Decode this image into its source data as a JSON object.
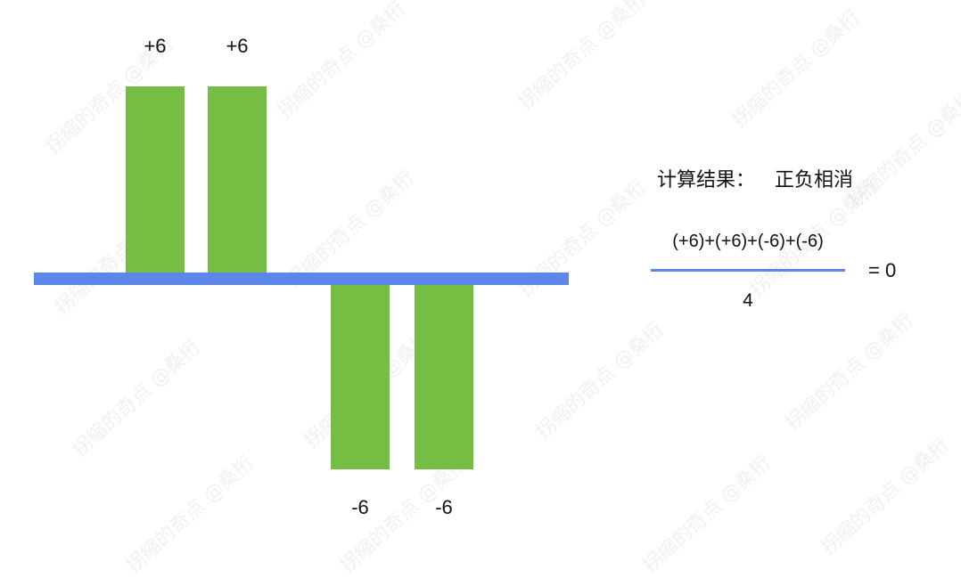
{
  "colors": {
    "bar": "#76bd43",
    "baseline": "#5c87e8",
    "fraction_bar": "#5c87e8",
    "text": "#111111"
  },
  "watermark_text": "拐縮的奇点 @桑桁",
  "chart_data": {
    "type": "bar",
    "values": [
      6,
      6,
      -6,
      -6
    ],
    "value_labels": [
      "+6",
      "+6",
      "-6",
      "-6"
    ],
    "ylim": [
      -6,
      6
    ],
    "baseline": 0,
    "grid": false
  },
  "panel": {
    "result_title": "计算结果：",
    "result_value": "正负相消",
    "numerator": "(+6)+(+6)+(-6)+(-6)",
    "denominator": "4",
    "equals": "= 0"
  }
}
